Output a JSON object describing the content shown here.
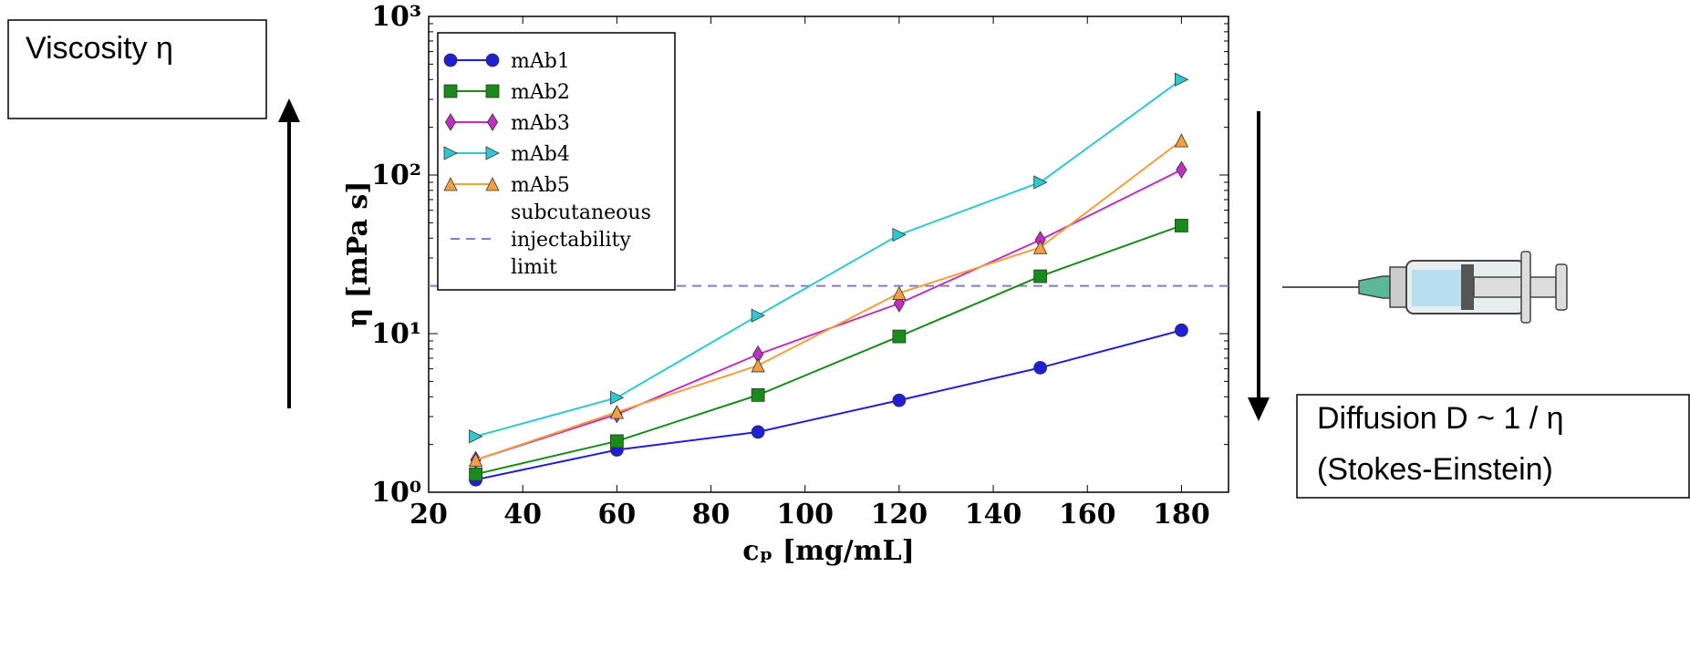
{
  "chart_data": {
    "type": "line",
    "xlabel": "cₚ [mg/mL]",
    "ylabel": "η [mPa s]",
    "x": [
      30,
      60,
      90,
      120,
      150,
      180
    ],
    "xlim": [
      20,
      190
    ],
    "xticks": [
      20,
      40,
      60,
      80,
      100,
      120,
      140,
      160,
      180
    ],
    "ylim": [
      1,
      1000
    ],
    "ylog": true,
    "yticks": [
      {
        "value": 1,
        "label": "10⁰"
      },
      {
        "value": 10,
        "label": "10¹"
      },
      {
        "value": 100,
        "label": "10²"
      },
      {
        "value": 1000,
        "label": "10³"
      }
    ],
    "series": [
      {
        "name": "mAb1",
        "color": "#1f1fd6",
        "marker": "circle",
        "values": [
          1.2,
          1.85,
          2.4,
          3.8,
          6.1,
          10.5
        ]
      },
      {
        "name": "mAb2",
        "color": "#1a8a1a",
        "marker": "square",
        "values": [
          1.3,
          2.1,
          4.1,
          9.6,
          23,
          48
        ]
      },
      {
        "name": "mAb3",
        "color": "#c030c0",
        "marker": "diamond",
        "values": [
          1.6,
          3.1,
          7.4,
          15.5,
          39,
          108
        ]
      },
      {
        "name": "mAb4",
        "color": "#30c8d0",
        "marker": "triangle-right",
        "values": [
          2.25,
          3.95,
          13,
          42,
          90,
          400
        ]
      },
      {
        "name": "mAb5",
        "color": "#f0a040",
        "marker": "triangle-up",
        "values": [
          1.6,
          3.2,
          6.3,
          18,
          35,
          165
        ]
      }
    ],
    "hline": {
      "name_lines": [
        "subcutaneous",
        "injectability",
        "limit"
      ],
      "value": 20,
      "color": "#8080c8"
    },
    "legend": "upper left"
  },
  "annotations": {
    "viscosity": "Viscosity η",
    "diffusion": [
      "Diffusion D ~ 1 / η",
      "(Stokes-Einstein)"
    ]
  }
}
